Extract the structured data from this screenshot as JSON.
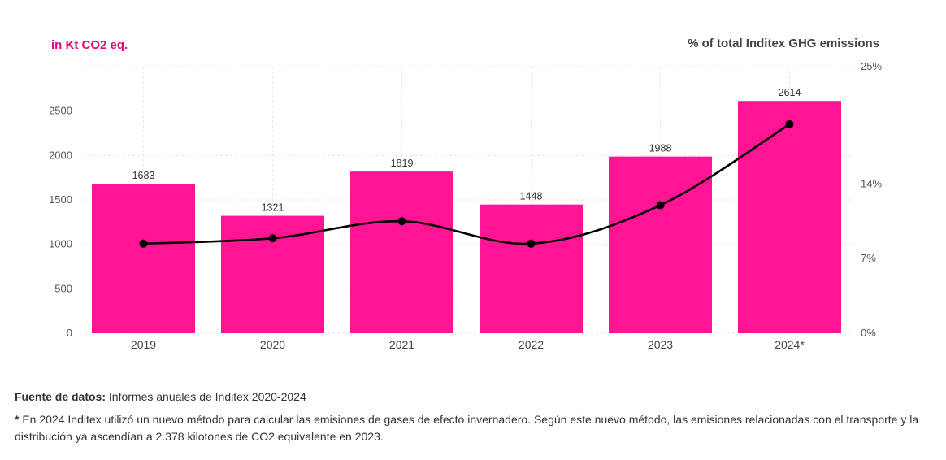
{
  "colors": {
    "bar": "#ff1493",
    "line": "#000000",
    "left_label": "#e6007e",
    "grid": "#e8e8e8"
  },
  "chart_data": {
    "type": "bar",
    "left_axis_title": "in Kt CO2 eq.",
    "right_axis_title": "% of total Inditex GHG emissions",
    "categories": [
      "2019",
      "2020",
      "2021",
      "2022",
      "2023",
      "2024*"
    ],
    "series": [
      {
        "name": "Kt CO2 eq.",
        "type": "bar",
        "axis": "left",
        "values": [
          1683,
          1321,
          1819,
          1448,
          1988,
          2614
        ]
      },
      {
        "name": "% of total Inditex GHG emissions",
        "type": "line",
        "axis": "right",
        "values": [
          8.4,
          8.9,
          10.5,
          8.4,
          12.0,
          19.6
        ]
      }
    ],
    "left_ylim": [
      0,
      3000
    ],
    "left_ticks": [
      0,
      500,
      1000,
      1500,
      2000,
      2500
    ],
    "right_ylim": [
      0,
      25
    ],
    "right_ticks": [
      {
        "value": 0,
        "label": "0%"
      },
      {
        "value": 7,
        "label": "7%"
      },
      {
        "value": 14,
        "label": "14%"
      },
      {
        "value": 25,
        "label": "25%"
      }
    ],
    "grid": true
  },
  "footer": {
    "source_label": "Fuente de datos:",
    "source_text": " Informes anuales de Inditex 2020-2024",
    "note_mark": "*",
    "note_text": " En 2024 Inditex utilizó un nuevo método para calcular las emisiones de gases de efecto invernadero. Según este nuevo método, las emisiones relacionadas con el transporte y la distribución ya ascendían a 2.378 kilotones de CO2 equivalente en 2023."
  }
}
